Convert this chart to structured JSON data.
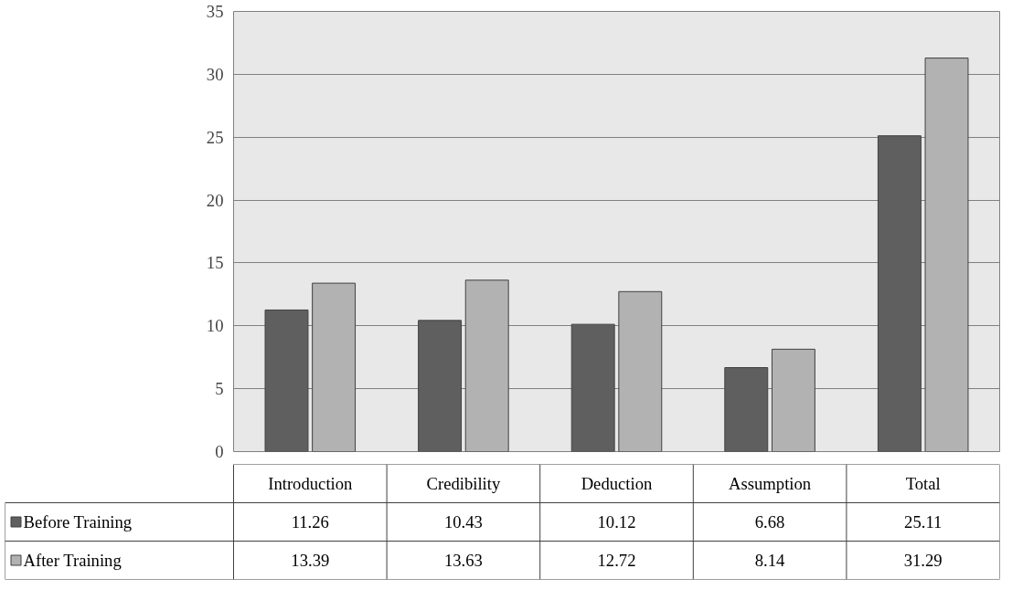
{
  "chart_data": {
    "type": "bar",
    "categories": [
      "Introduction",
      "Credibility",
      "Deduction",
      "Assumption",
      "Total"
    ],
    "series": [
      {
        "name": "Before Training",
        "color": "#5f5f5f",
        "values": [
          11.26,
          10.43,
          10.12,
          6.68,
          25.11
        ]
      },
      {
        "name": "After Training",
        "color": "#b2b2b2",
        "values": [
          13.39,
          13.63,
          12.72,
          8.14,
          31.29
        ]
      }
    ],
    "ylim": [
      0,
      35
    ],
    "yticks": [
      0,
      5,
      10,
      15,
      20,
      25,
      30,
      35
    ],
    "grid": "y",
    "legend": "bottom left",
    "data_labels": true
  }
}
